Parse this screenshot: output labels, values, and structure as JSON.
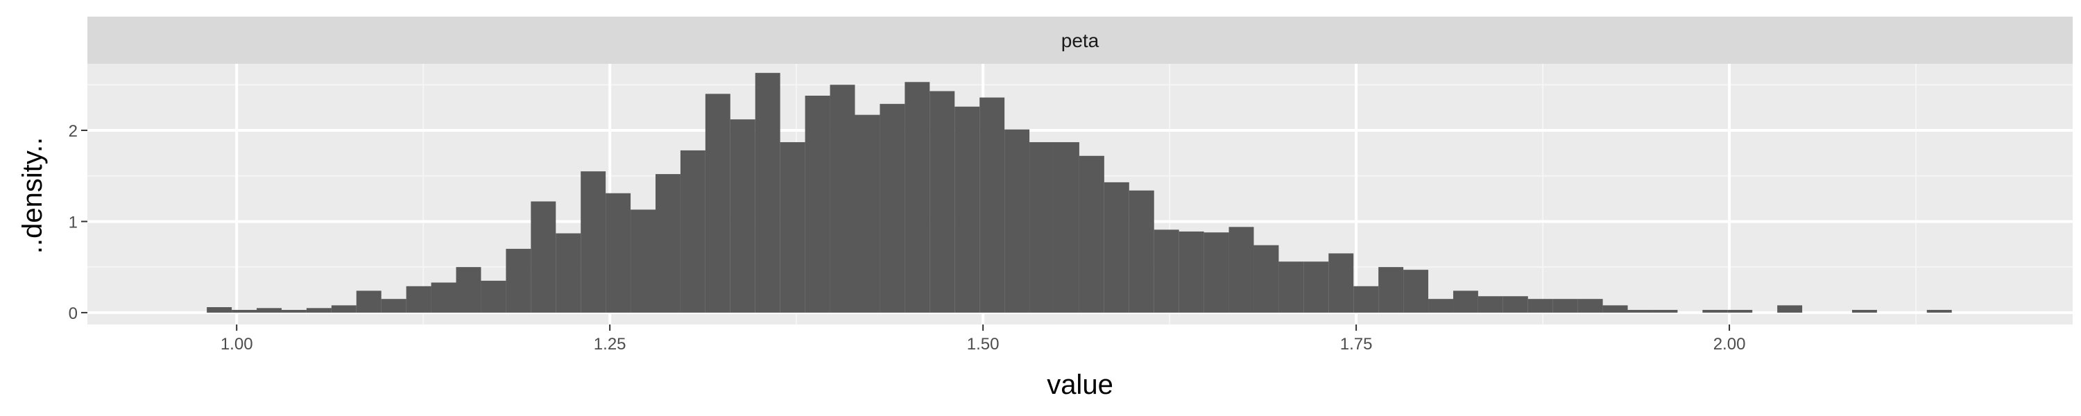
{
  "chart_data": {
    "type": "histogram",
    "facet_label": "peta",
    "xlabel": "value",
    "ylabel": "..density..",
    "xlim": [
      0.9,
      2.23
    ],
    "ylim": [
      -0.13,
      2.73
    ],
    "x_ticks": [
      {
        "value": 1.0,
        "label": "1.00"
      },
      {
        "value": 1.25,
        "label": "1.25"
      },
      {
        "value": 1.5,
        "label": "1.50"
      },
      {
        "value": 1.75,
        "label": "1.75"
      },
      {
        "value": 2.0,
        "label": "2.00"
      }
    ],
    "y_ticks": [
      {
        "value": 0,
        "label": "0"
      },
      {
        "value": 1,
        "label": "1"
      },
      {
        "value": 2,
        "label": "2"
      }
    ],
    "bin_start": 0.98,
    "bin_width": 0.0167,
    "values": [
      0.06,
      0.03,
      0.05,
      0.03,
      0.05,
      0.08,
      0.24,
      0.15,
      0.29,
      0.33,
      0.5,
      0.35,
      0.7,
      1.22,
      0.87,
      1.55,
      1.31,
      1.13,
      1.52,
      1.78,
      2.4,
      2.12,
      2.63,
      1.87,
      2.38,
      2.5,
      2.17,
      2.29,
      2.53,
      2.43,
      2.26,
      2.36,
      2.01,
      1.87,
      1.87,
      1.72,
      1.43,
      1.34,
      0.91,
      0.89,
      0.88,
      0.94,
      0.74,
      0.56,
      0.56,
      0.65,
      0.29,
      0.5,
      0.47,
      0.15,
      0.24,
      0.18,
      0.18,
      0.15,
      0.15,
      0.15,
      0.08,
      0.03,
      0.03,
      0,
      0.03,
      0.03,
      0,
      0.08,
      0,
      0,
      0.03,
      0,
      0,
      0.03
    ],
    "grid": true,
    "colors": {
      "panel_background": "#ebebeb",
      "strip_background": "#d9d9d9",
      "bar_fill": "#595959",
      "grid_major": "#ffffff",
      "grid_minor": "#f5f5f5"
    }
  }
}
